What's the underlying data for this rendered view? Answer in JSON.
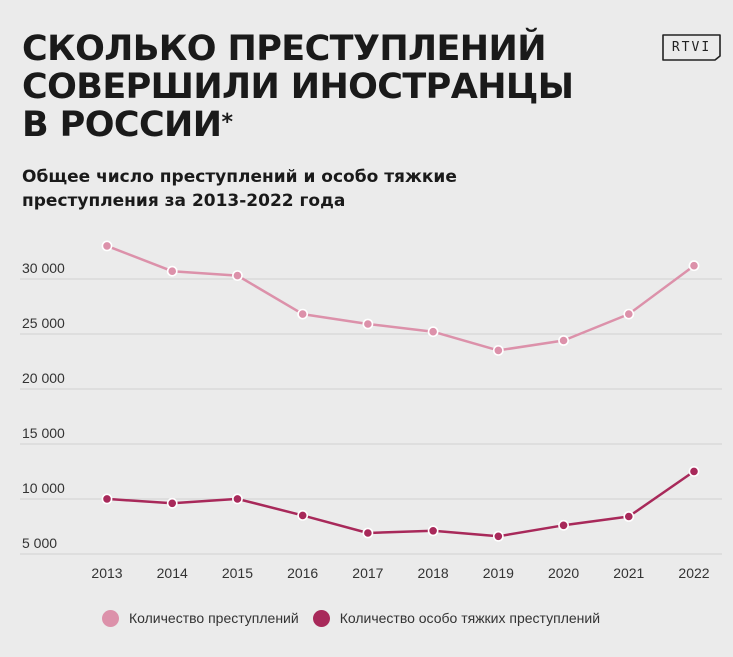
{
  "header": {
    "title_lines": [
      "СКОЛЬКО ПРЕСТУПЛЕНИЙ",
      "СОВЕРШИЛИ ИНОСТРАНЦЫ",
      "В РОССИИ"
    ],
    "title_mark": "*",
    "subtitle_lines": [
      "Общее число преступлений и особо тяжкие",
      "преступления за 2013-2022 года"
    ],
    "logo_text": "RTVI"
  },
  "chart_data": {
    "type": "line",
    "title": "СКОЛЬКО ПРЕСТУПЛЕНИЙ СОВЕРШИЛИ ИНОСТРАНЦЫ В РОССИИ*",
    "subtitle": "Общее число преступлений и особо тяжкие преступления за 2013-2022 года",
    "xlabel": "",
    "ylabel": "",
    "x": [
      "2013",
      "2014",
      "2015",
      "2016",
      "2017",
      "2018",
      "2019",
      "2020",
      "2021",
      "2022"
    ],
    "y_ticks": [
      5000,
      10000,
      15000,
      20000,
      25000,
      30000
    ],
    "y_tick_labels": [
      "5 000",
      "10 000",
      "15 000",
      "20 000",
      "25 000",
      "30 000"
    ],
    "grid": true,
    "legend_position": "bottom",
    "series": [
      {
        "name": "Количество преступлений",
        "color": "#dc91aa",
        "values": [
          32100,
          29800,
          29400,
          25900,
          25000,
          24300,
          22600,
          23500,
          25900,
          30300
        ]
      },
      {
        "name": "Количество особо тяжких преступлений",
        "color": "#a8295a",
        "values": [
          9100,
          8700,
          9100,
          7600,
          6000,
          6200,
          5700,
          6700,
          7500,
          11600
        ]
      }
    ]
  }
}
